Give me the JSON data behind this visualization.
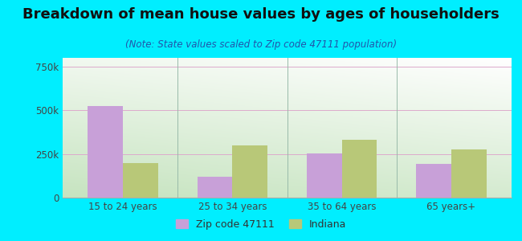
{
  "title": "Breakdown of mean house values by ages of householders",
  "subtitle": "(Note: State values scaled to Zip code 47111 population)",
  "categories": [
    "15 to 24 years",
    "25 to 34 years",
    "35 to 64 years",
    "65 years+"
  ],
  "zip_values": [
    525000,
    120000,
    255000,
    195000
  ],
  "indiana_values": [
    200000,
    300000,
    330000,
    275000
  ],
  "zip_color": "#c8a0d8",
  "indiana_color": "#b8c878",
  "background_outer": "#00eeff",
  "ylim": [
    0,
    800000
  ],
  "yticks": [
    0,
    250000,
    500000,
    750000
  ],
  "ytick_labels": [
    "0",
    "250k",
    "500k",
    "750k"
  ],
  "legend_zip_label": "Zip code 47111",
  "legend_indiana_label": "Indiana",
  "bar_width": 0.32,
  "title_fontsize": 13,
  "subtitle_fontsize": 8.5,
  "tick_fontsize": 8.5,
  "legend_fontsize": 9,
  "grid_color": "#ddbbcc",
  "separator_color": "#99bbaa"
}
